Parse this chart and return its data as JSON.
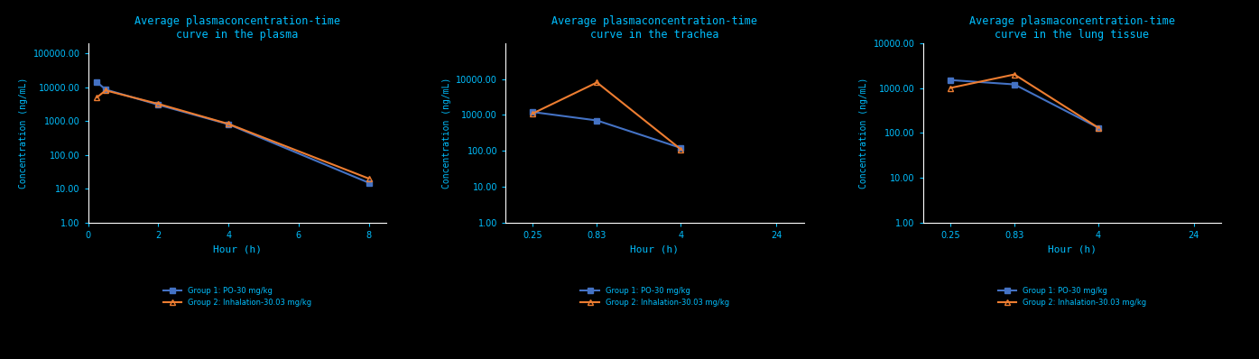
{
  "plot1": {
    "title": "Average plasmaconcentration-time\ncurve in the plasma",
    "xlabel": "Hour (h)",
    "ylabel": "Concentration (ng/mL)",
    "x_ticks": [
      0,
      2,
      4,
      6,
      8
    ],
    "xlim": [
      0,
      8.5
    ],
    "ylim": [
      1.0,
      200000
    ],
    "group1": {
      "x": [
        0.25,
        0.5,
        2,
        4,
        8
      ],
      "y": [
        14000,
        8500,
        3000,
        800,
        15
      ],
      "color": "#4472C4",
      "marker": "s",
      "label": "Group 1: PO-30 mg/kg"
    },
    "group2": {
      "x": [
        0.25,
        0.5,
        2,
        4,
        8
      ],
      "y": [
        5000,
        8000,
        3200,
        820,
        20
      ],
      "color": "#ED7D31",
      "marker": "^",
      "label": "Group 2: Inhalation-30.03 mg/kg"
    }
  },
  "plot2": {
    "title": "Average plasmaconcentration-time\ncurve in the trachea",
    "xlabel": "Hour (h)",
    "ylabel": "Concentration (ng/mL)",
    "x_ticks": [
      0.25,
      0.83,
      4,
      24
    ],
    "xlim_log": true,
    "ylim": [
      1.0,
      100000
    ],
    "group1": {
      "x": [
        0.25,
        0.83,
        4
      ],
      "y": [
        1200,
        700,
        120
      ],
      "color": "#4472C4",
      "marker": "s",
      "label": "Group 1: PO-30 mg/kg"
    },
    "group2": {
      "x": [
        0.25,
        0.83,
        4
      ],
      "y": [
        1100,
        8000,
        110
      ],
      "color": "#ED7D31",
      "marker": "^",
      "label": "Group 2: Inhalation-30.03 mg/kg"
    }
  },
  "plot3": {
    "title": "Average plasmaconcentration-time\ncurve in the lung tissue",
    "xlabel": "Hour (h)",
    "ylabel": "Concentration (ng/mL)",
    "x_ticks": [
      0.25,
      0.83,
      4,
      24
    ],
    "xlim_log": true,
    "ylim": [
      1.0,
      10000
    ],
    "group1": {
      "x": [
        0.25,
        0.83,
        4
      ],
      "y": [
        1500,
        1200,
        130
      ],
      "color": "#4472C4",
      "marker": "s",
      "label": "Group 1: PO-30 mg/kg"
    },
    "group2": {
      "x": [
        0.25,
        0.83,
        4
      ],
      "y": [
        1000,
        2000,
        130
      ],
      "color": "#ED7D31",
      "marker": "^",
      "label": "Group 2: Inhalation-30.03 mg/kg"
    }
  },
  "bg_color": "#000000",
  "text_color": "#00BFFF",
  "axis_color": "#FFFFFF",
  "font_family": "monospace"
}
